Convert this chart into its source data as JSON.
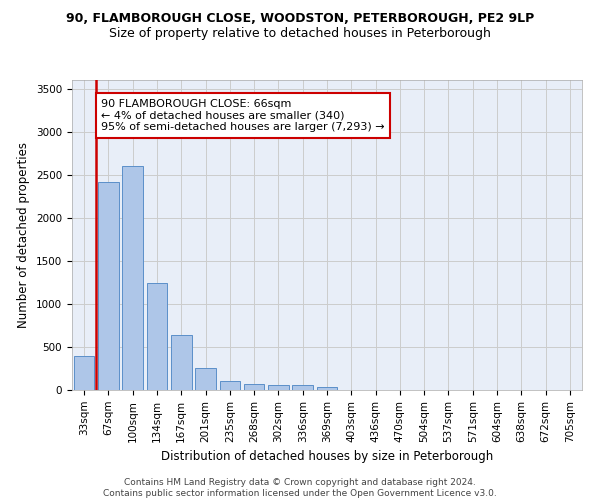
{
  "title1": "90, FLAMBOROUGH CLOSE, WOODSTON, PETERBOROUGH, PE2 9LP",
  "title2": "Size of property relative to detached houses in Peterborough",
  "xlabel": "Distribution of detached houses by size in Peterborough",
  "ylabel": "Number of detached properties",
  "categories": [
    "33sqm",
    "67sqm",
    "100sqm",
    "134sqm",
    "167sqm",
    "201sqm",
    "235sqm",
    "268sqm",
    "302sqm",
    "336sqm",
    "369sqm",
    "403sqm",
    "436sqm",
    "470sqm",
    "504sqm",
    "537sqm",
    "571sqm",
    "604sqm",
    "638sqm",
    "672sqm",
    "705sqm"
  ],
  "values": [
    390,
    2410,
    2600,
    1240,
    640,
    255,
    100,
    65,
    60,
    55,
    35,
    0,
    0,
    0,
    0,
    0,
    0,
    0,
    0,
    0,
    0
  ],
  "bar_color": "#aec6e8",
  "bar_edge_color": "#5b8fc9",
  "annotation_text": "90 FLAMBOROUGH CLOSE: 66sqm\n← 4% of detached houses are smaller (340)\n95% of semi-detached houses are larger (7,293) →",
  "vline_color": "#cc0000",
  "annotation_box_color": "#ffffff",
  "annotation_box_edge_color": "#cc0000",
  "ylim": [
    0,
    3600
  ],
  "yticks": [
    0,
    500,
    1000,
    1500,
    2000,
    2500,
    3000,
    3500
  ],
  "grid_color": "#cccccc",
  "bg_color": "#e8eef8",
  "footer": "Contains HM Land Registry data © Crown copyright and database right 2024.\nContains public sector information licensed under the Open Government Licence v3.0.",
  "title1_fontsize": 9,
  "title2_fontsize": 9,
  "xlabel_fontsize": 8.5,
  "ylabel_fontsize": 8.5,
  "tick_fontsize": 7.5,
  "annotation_fontsize": 8,
  "footer_fontsize": 6.5
}
